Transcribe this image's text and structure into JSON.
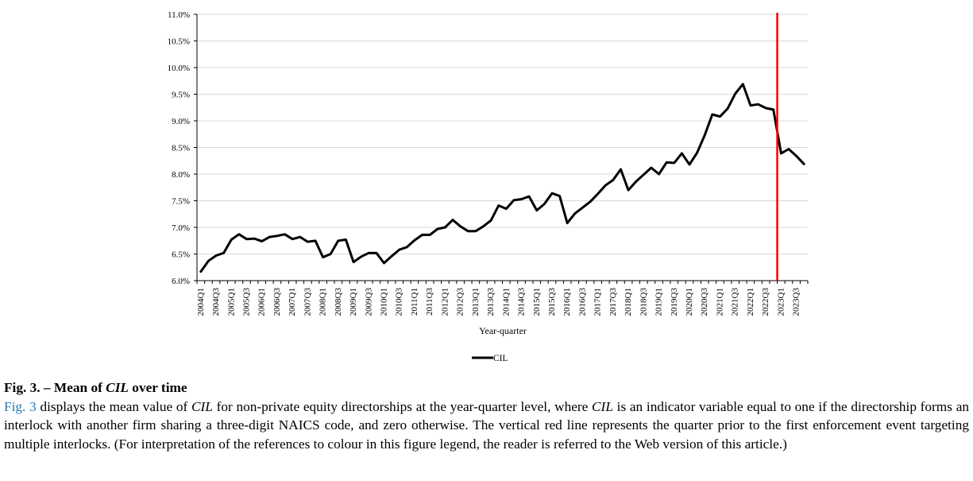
{
  "chart_data": {
    "type": "line",
    "xlabel": "Year-quarter",
    "ylabel": "",
    "ylim": [
      6.0,
      11.0
    ],
    "yticks": [
      "6.0%",
      "6.5%",
      "7.0%",
      "7.5%",
      "8.0%",
      "8.5%",
      "9.0%",
      "9.5%",
      "10.0%",
      "10.5%",
      "11.0%"
    ],
    "ytick_values": [
      6.0,
      6.5,
      7.0,
      7.5,
      8.0,
      8.5,
      9.0,
      9.5,
      10.0,
      10.5,
      11.0
    ],
    "grid": true,
    "legend_position": "bottom",
    "categories": [
      "2004Q1",
      "2004Q2",
      "2004Q3",
      "2004Q4",
      "2005Q1",
      "2005Q2",
      "2005Q3",
      "2005Q4",
      "2006Q1",
      "2006Q2",
      "2006Q3",
      "2006Q4",
      "2007Q1",
      "2007Q2",
      "2007Q3",
      "2007Q4",
      "2008Q1",
      "2008Q2",
      "2008Q3",
      "2008Q4",
      "2009Q1",
      "2009Q2",
      "2009Q3",
      "2009Q4",
      "2010Q1",
      "2010Q2",
      "2010Q3",
      "2010Q4",
      "2011Q1",
      "2011Q2",
      "2011Q3",
      "2011Q4",
      "2012Q1",
      "2012Q2",
      "2012Q3",
      "2012Q4",
      "2013Q1",
      "2013Q2",
      "2013Q3",
      "2013Q4",
      "2014Q1",
      "2014Q2",
      "2014Q3",
      "2014Q4",
      "2015Q1",
      "2015Q2",
      "2015Q3",
      "2015Q4",
      "2016Q1",
      "2016Q2",
      "2016Q3",
      "2016Q4",
      "2017Q1",
      "2017Q2",
      "2017Q3",
      "2017Q4",
      "2018Q1",
      "2018Q2",
      "2018Q3",
      "2018Q4",
      "2019Q1",
      "2019Q2",
      "2019Q3",
      "2019Q4",
      "2020Q1",
      "2020Q2",
      "2020Q3",
      "2020Q4",
      "2021Q1",
      "2021Q2",
      "2021Q3",
      "2021Q4",
      "2022Q1",
      "2022Q2",
      "2022Q3",
      "2022Q4",
      "2023Q1",
      "2023Q2",
      "2023Q3",
      "2023Q4"
    ],
    "tick_labels": [
      "2004Q1",
      "2004Q3",
      "2005Q1",
      "2005Q3",
      "2006Q1",
      "2006Q3",
      "2007Q1",
      "2007Q3",
      "2008Q1",
      "2008Q3",
      "2009Q1",
      "2009Q3",
      "2010Q1",
      "2010Q3",
      "2011Q1",
      "2011Q3",
      "2012Q1",
      "2012Q3",
      "2013Q1",
      "2013Q3",
      "2014Q1",
      "2014Q3",
      "2015Q1",
      "2015Q3",
      "2016Q1",
      "2016Q3",
      "2017Q1",
      "2017Q3",
      "2018Q1",
      "2018Q3",
      "2019Q1",
      "2019Q3",
      "2020Q1",
      "2020Q3",
      "2021Q1",
      "2021Q3",
      "2022Q1",
      "2022Q3",
      "2023Q1",
      "2023Q3"
    ],
    "series": [
      {
        "name": "CIL",
        "color": "#000000",
        "values": [
          6.17,
          6.37,
          6.47,
          6.52,
          6.77,
          6.87,
          6.78,
          6.79,
          6.74,
          6.82,
          6.84,
          6.87,
          6.78,
          6.82,
          6.73,
          6.75,
          6.44,
          6.5,
          6.75,
          6.77,
          6.35,
          6.45,
          6.52,
          6.52,
          6.33,
          6.46,
          6.58,
          6.63,
          6.76,
          6.86,
          6.86,
          6.97,
          7.0,
          7.14,
          7.02,
          6.93,
          6.93,
          7.02,
          7.13,
          7.41,
          7.35,
          7.51,
          7.53,
          7.58,
          7.32,
          7.44,
          7.64,
          7.59,
          7.08,
          7.26,
          7.37,
          7.48,
          7.63,
          7.79,
          7.89,
          8.09,
          7.7,
          7.86,
          7.99,
          8.12,
          8.0,
          8.22,
          8.21,
          8.39,
          8.18,
          8.4,
          8.73,
          9.12,
          9.08,
          9.23,
          9.51,
          9.69,
          9.29,
          9.31,
          9.24,
          9.21,
          8.39,
          8.47,
          8.34,
          8.19
        ]
      }
    ],
    "vline": {
      "after_category": "2022Q4",
      "color": "#ff0000"
    },
    "legend": [
      "CIL"
    ]
  },
  "caption": {
    "label": "Fig. 3.",
    "dash": " – Mean of ",
    "title_italic": "CIL",
    "title_end": " over time",
    "ref": "Fig. 3",
    "p1": " displays the mean value of ",
    "i1": "CIL",
    "p2": " for non-private equity directorships at the year-quarter level, where ",
    "i2": "CIL",
    "p3": " is an indicator variable equal to one if the directorship forms an interlock with another firm sharing a three-digit NAICS code, and zero otherwise. The vertical red line represents the quarter prior to the first enforcement event targeting multiple interlocks. (For interpretation of the references to colour in this figure legend, the reader is referred to the Web version of this article.)"
  }
}
